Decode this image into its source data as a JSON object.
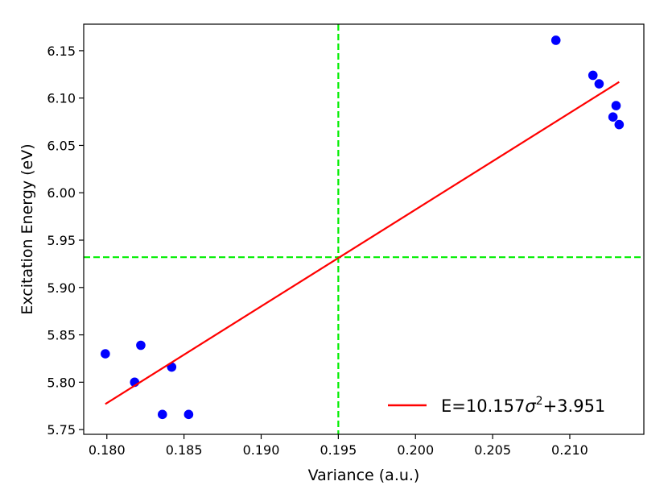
{
  "chart_data": {
    "type": "scatter",
    "title": "",
    "xlabel": "Variance (a.u.)",
    "ylabel": "Excitation Energy (eV)",
    "xlim": [
      0.1785,
      0.2148
    ],
    "ylim": [
      5.745,
      6.178
    ],
    "xticks": [
      0.18,
      0.185,
      0.19,
      0.195,
      0.2,
      0.205,
      0.21
    ],
    "xtick_labels": [
      "0.180",
      "0.185",
      "0.190",
      "0.195",
      "0.200",
      "0.205",
      "0.210"
    ],
    "yticks": [
      5.75,
      5.8,
      5.85,
      5.9,
      5.95,
      6.0,
      6.05,
      6.1,
      6.15
    ],
    "ytick_labels": [
      "5.75",
      "5.80",
      "5.85",
      "5.90",
      "5.95",
      "6.00",
      "6.05",
      "6.10",
      "6.15"
    ],
    "grid": false,
    "series": [
      {
        "kind": "scatter",
        "color": "#0000ff",
        "points": [
          {
            "x": 0.1799,
            "y": 5.83
          },
          {
            "x": 0.1818,
            "y": 5.8
          },
          {
            "x": 0.1822,
            "y": 5.839
          },
          {
            "x": 0.1836,
            "y": 5.766
          },
          {
            "x": 0.1842,
            "y": 5.816
          },
          {
            "x": 0.1853,
            "y": 5.766
          },
          {
            "x": 0.2091,
            "y": 6.161
          },
          {
            "x": 0.2115,
            "y": 6.124
          },
          {
            "x": 0.2119,
            "y": 6.115
          },
          {
            "x": 0.2128,
            "y": 6.08
          },
          {
            "x": 0.213,
            "y": 6.092
          },
          {
            "x": 0.2132,
            "y": 6.072
          }
        ]
      },
      {
        "kind": "line",
        "name": "E=10.157σ²+3.951",
        "color": "#ff0000",
        "x": [
          0.1799,
          0.2132
        ],
        "y": [
          5.777,
          6.117
        ]
      }
    ],
    "reference_lines": [
      {
        "orientation": "vertical",
        "value": 0.195,
        "color": "#00ee00",
        "style": "dashed"
      },
      {
        "orientation": "horizontal",
        "value": 5.932,
        "color": "#00ee00",
        "style": "dashed"
      }
    ],
    "legend": {
      "position": "lower-right",
      "label_prefix": "E=10.157",
      "label_symbol": "σ",
      "label_superscript": "2",
      "label_suffix": "+3.951"
    }
  }
}
